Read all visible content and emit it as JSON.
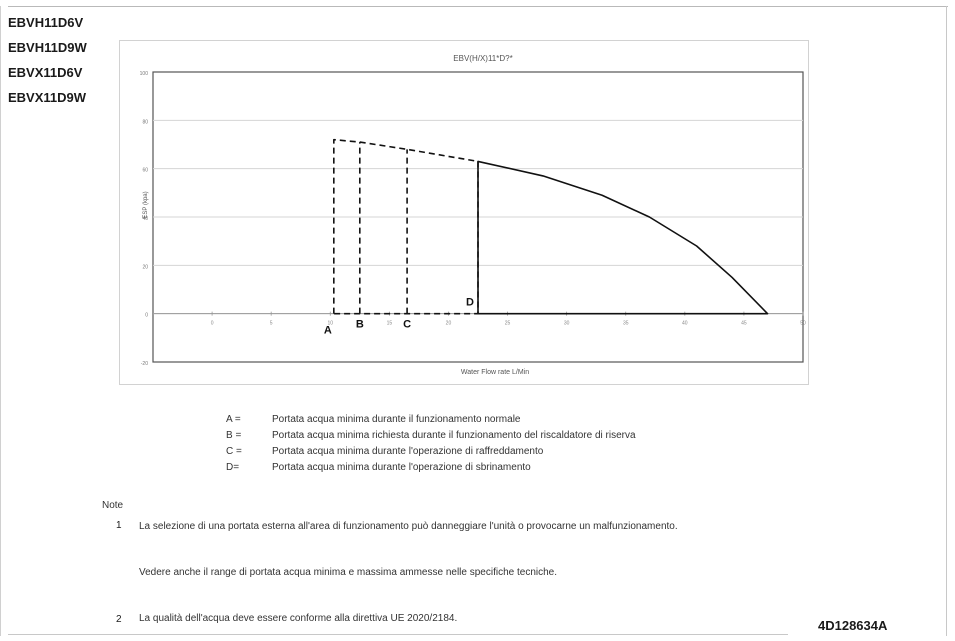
{
  "models": [
    "EBVH11D6V",
    "EBVH11D9W",
    "EBVX11D6V",
    "EBVX11D9W"
  ],
  "chart_data": {
    "type": "line",
    "title": "EBV(H/X)11*D?*",
    "xlabel": "Water Flow rate L/Min",
    "ylabel": "ESP (kpa)",
    "y_tick_labels": [
      "100",
      "80",
      "60",
      "40",
      "20",
      "0",
      "-20"
    ],
    "x_tick_labels": [
      "0",
      "5",
      "10",
      "15",
      "20",
      "25",
      "30",
      "35",
      "40",
      "45",
      "50"
    ],
    "xlim": [
      -5,
      50
    ],
    "ylim": [
      -20,
      100
    ],
    "grid": true,
    "point_labels": [
      "A",
      "B",
      "C",
      "D"
    ],
    "series": [
      {
        "style": "dashed",
        "points": [
          [
            10.3,
            0
          ],
          [
            10.3,
            72
          ],
          [
            12.5,
            71
          ],
          [
            16.5,
            68
          ],
          [
            22.5,
            63
          ],
          [
            22.5,
            0
          ],
          [
            10.3,
            0
          ]
        ]
      },
      {
        "style": "dashed",
        "points": [
          [
            12.5,
            0
          ],
          [
            12.5,
            71
          ]
        ]
      },
      {
        "style": "dashed",
        "points": [
          [
            16.5,
            0
          ],
          [
            16.5,
            68
          ]
        ]
      },
      {
        "style": "solid",
        "points": [
          [
            22.5,
            0
          ],
          [
            22.5,
            63
          ],
          [
            28,
            57
          ],
          [
            33,
            49
          ],
          [
            37,
            40
          ],
          [
            41,
            28
          ],
          [
            44,
            15
          ],
          [
            47,
            0
          ],
          [
            22.5,
            0
          ]
        ]
      }
    ]
  },
  "legend": [
    {
      "key": "A =",
      "text": "Portata acqua minima durante il funzionamento normale"
    },
    {
      "key": "B =",
      "text": "Portata acqua minima richiesta durante il funzionamento del riscaldatore di riserva"
    },
    {
      "key": "C =",
      "text": "Portata acqua minima durante l'operazione di raffreddamento"
    },
    {
      "key": "D=",
      "text": "Portata acqua minima durante l'operazione di sbrinamento"
    }
  ],
  "notes": {
    "title": "Note",
    "items": [
      {
        "num": "1",
        "text": "La selezione di una portata esterna all'area di funzionamento può danneggiare l'unità o provocarne un malfunzionamento.",
        "sub": "Vedere anche il range di portata acqua minima e massima ammesse nelle specifiche tecniche."
      },
      {
        "num": "2",
        "text": "La qualità dell'acqua deve essere conforme alla direttiva UE 2020/2184."
      }
    ]
  },
  "doc_id": "4D128634A"
}
